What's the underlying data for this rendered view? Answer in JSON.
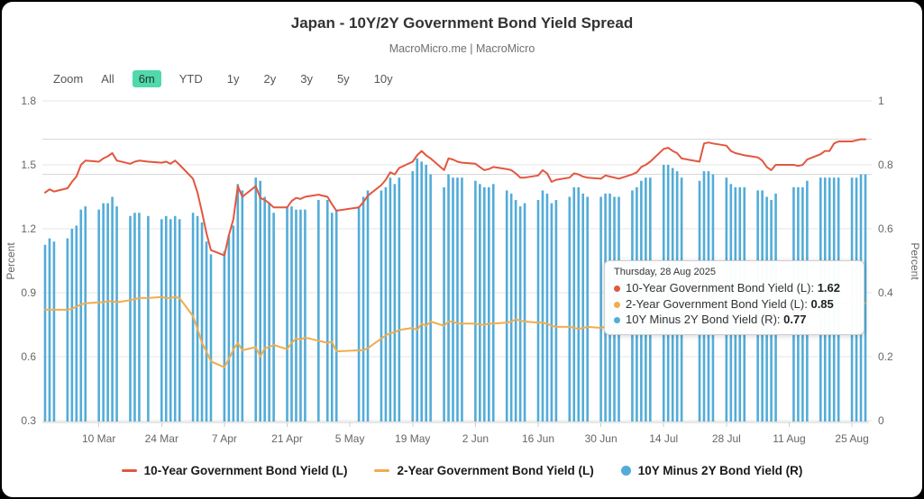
{
  "header": {
    "title": "Japan - 10Y/2Y Government Bond Yield Spread",
    "subtitle": "MacroMicro.me | MacroMicro"
  },
  "zoom_controls": {
    "label": "Zoom",
    "options": [
      "All",
      "6m",
      "YTD",
      "1y",
      "2y",
      "3y",
      "5y",
      "10y"
    ],
    "active": "6m",
    "active_bg": "#50d9ab"
  },
  "tooltip": {
    "title": "Thursday, 28 Aug 2025",
    "rows": [
      {
        "label": "10-Year Government Bond Yield (L)",
        "value": "1.62",
        "color": "#e2573f"
      },
      {
        "label": "2-Year Government Bond Yield (L)",
        "value": "0.85",
        "color": "#f0ad4e"
      },
      {
        "label": "10Y Minus 2Y Bond Yield (R)",
        "value": "0.77",
        "color": "#53acd8"
      }
    ]
  },
  "legend": [
    {
      "name": "10-Year Government Bond Yield (L)",
      "color": "#e2573f",
      "marker": "line"
    },
    {
      "name": "2-Year Government Bond Yield (L)",
      "color": "#f0ad4e",
      "marker": "line"
    },
    {
      "name": "10Y Minus 2Y Bond Yield (R)",
      "color": "#53acd8",
      "marker": "circle"
    }
  ],
  "chart_data": {
    "type": "mixed",
    "title": "Japan - 10Y/2Y Government Bond Yield Spread",
    "grid": true,
    "axes": {
      "left": {
        "title": "Percent",
        "min": 0.3,
        "max": 1.8,
        "tick_labels": [
          "1.8",
          "1.5",
          "1.2",
          "0.9",
          "0.6",
          "0.3"
        ],
        "tick_values": [
          1.8,
          1.5,
          1.2,
          0.9,
          0.6,
          0.3
        ]
      },
      "right": {
        "title": "Percent",
        "min": 0,
        "max": 1,
        "tick_labels": [
          "1",
          "0.8",
          "0.6",
          "0.4",
          "0.2",
          "0"
        ],
        "tick_values": [
          1,
          0.8,
          0.6,
          0.4,
          0.2,
          0
        ]
      },
      "x": {
        "start_date": "2025-02-26",
        "end_date": "2025-08-28",
        "ticks": [
          {
            "label": "10 Mar",
            "date": "2025-03-10"
          },
          {
            "label": "24 Mar",
            "date": "2025-03-24"
          },
          {
            "label": "7 Apr",
            "date": "2025-04-07"
          },
          {
            "label": "21 Apr",
            "date": "2025-04-21"
          },
          {
            "label": "5 May",
            "date": "2025-05-05"
          },
          {
            "label": "19 May",
            "date": "2025-05-19"
          },
          {
            "label": "2 Jun",
            "date": "2025-06-02"
          },
          {
            "label": "16 Jun",
            "date": "2025-06-16"
          },
          {
            "label": "30 Jun",
            "date": "2025-06-30"
          },
          {
            "label": "14 Jul",
            "date": "2025-07-14"
          },
          {
            "label": "28 Jul",
            "date": "2025-07-28"
          },
          {
            "label": "11 Aug",
            "date": "2025-08-11"
          },
          {
            "label": "25 Aug",
            "date": "2025-08-25"
          }
        ]
      }
    },
    "reference_lines": [
      {
        "axis": "left",
        "value": 1.62
      },
      {
        "axis": "right",
        "value": 0.77
      }
    ],
    "dates": [
      "2025-02-26",
      "2025-02-27",
      "2025-02-28",
      "2025-03-03",
      "2025-03-04",
      "2025-03-05",
      "2025-03-06",
      "2025-03-07",
      "2025-03-10",
      "2025-03-11",
      "2025-03-12",
      "2025-03-13",
      "2025-03-14",
      "2025-03-17",
      "2025-03-18",
      "2025-03-19",
      "2025-03-21",
      "2025-03-24",
      "2025-03-25",
      "2025-03-26",
      "2025-03-27",
      "2025-03-28",
      "2025-03-31",
      "2025-04-01",
      "2025-04-02",
      "2025-04-03",
      "2025-04-04",
      "2025-04-07",
      "2025-04-08",
      "2025-04-09",
      "2025-04-10",
      "2025-04-11",
      "2025-04-14",
      "2025-04-15",
      "2025-04-16",
      "2025-04-17",
      "2025-04-18",
      "2025-04-21",
      "2025-04-22",
      "2025-04-23",
      "2025-04-24",
      "2025-04-25",
      "2025-04-28",
      "2025-04-30",
      "2025-05-01",
      "2025-05-02",
      "2025-05-07",
      "2025-05-08",
      "2025-05-09",
      "2025-05-12",
      "2025-05-13",
      "2025-05-14",
      "2025-05-15",
      "2025-05-16",
      "2025-05-19",
      "2025-05-20",
      "2025-05-21",
      "2025-05-22",
      "2025-05-23",
      "2025-05-26",
      "2025-05-27",
      "2025-05-28",
      "2025-05-29",
      "2025-05-30",
      "2025-06-02",
      "2025-06-03",
      "2025-06-04",
      "2025-06-05",
      "2025-06-06",
      "2025-06-09",
      "2025-06-10",
      "2025-06-11",
      "2025-06-12",
      "2025-06-13",
      "2025-06-16",
      "2025-06-17",
      "2025-06-18",
      "2025-06-19",
      "2025-06-20",
      "2025-06-23",
      "2025-06-24",
      "2025-06-25",
      "2025-06-26",
      "2025-06-27",
      "2025-06-30",
      "2025-07-01",
      "2025-07-02",
      "2025-07-03",
      "2025-07-04",
      "2025-07-07",
      "2025-07-08",
      "2025-07-09",
      "2025-07-10",
      "2025-07-11",
      "2025-07-14",
      "2025-07-15",
      "2025-07-16",
      "2025-07-17",
      "2025-07-18",
      "2025-07-22",
      "2025-07-23",
      "2025-07-24",
      "2025-07-25",
      "2025-07-28",
      "2025-07-29",
      "2025-07-30",
      "2025-07-31",
      "2025-08-01",
      "2025-08-04",
      "2025-08-05",
      "2025-08-06",
      "2025-08-07",
      "2025-08-08",
      "2025-08-12",
      "2025-08-13",
      "2025-08-14",
      "2025-08-15",
      "2025-08-18",
      "2025-08-19",
      "2025-08-20",
      "2025-08-21",
      "2025-08-22",
      "2025-08-25",
      "2025-08-26",
      "2025-08-27",
      "2025-08-28"
    ],
    "series": [
      {
        "name": "10-Year Government Bond Yield (L)",
        "type": "line",
        "axis": "left",
        "color": "#e2573f",
        "values": [
          1.37,
          1.385,
          1.375,
          1.39,
          1.42,
          1.445,
          1.5,
          1.52,
          1.515,
          1.53,
          1.54,
          1.555,
          1.52,
          1.505,
          1.515,
          1.52,
          1.515,
          1.51,
          1.515,
          1.505,
          1.52,
          1.5,
          1.435,
          1.37,
          1.28,
          1.18,
          1.1,
          1.075,
          1.17,
          1.245,
          1.4,
          1.35,
          1.4,
          1.345,
          1.335,
          1.32,
          1.3,
          1.3,
          1.33,
          1.345,
          1.34,
          1.35,
          1.36,
          1.35,
          1.315,
          1.285,
          1.3,
          1.325,
          1.355,
          1.405,
          1.43,
          1.465,
          1.455,
          1.485,
          1.515,
          1.545,
          1.565,
          1.545,
          1.53,
          1.475,
          1.53,
          1.525,
          1.515,
          1.51,
          1.505,
          1.49,
          1.475,
          1.48,
          1.49,
          1.48,
          1.475,
          1.46,
          1.44,
          1.44,
          1.45,
          1.475,
          1.46,
          1.42,
          1.43,
          1.44,
          1.46,
          1.455,
          1.445,
          1.44,
          1.435,
          1.45,
          1.445,
          1.44,
          1.435,
          1.455,
          1.465,
          1.49,
          1.5,
          1.515,
          1.575,
          1.58,
          1.565,
          1.555,
          1.53,
          1.515,
          1.6,
          1.605,
          1.6,
          1.59,
          1.565,
          1.555,
          1.55,
          1.545,
          1.535,
          1.52,
          1.49,
          1.475,
          1.5,
          1.5,
          1.495,
          1.5,
          1.525,
          1.55,
          1.565,
          1.565,
          1.6,
          1.61,
          1.61,
          1.615,
          1.62,
          1.62
        ]
      },
      {
        "name": "2-Year Government Bond Yield (L)",
        "type": "line",
        "axis": "left",
        "color": "#f0ad4e",
        "values": [
          0.82,
          0.82,
          0.82,
          0.82,
          0.825,
          0.835,
          0.845,
          0.85,
          0.855,
          0.855,
          0.86,
          0.86,
          0.855,
          0.865,
          0.87,
          0.875,
          0.875,
          0.88,
          0.875,
          0.875,
          0.88,
          0.875,
          0.79,
          0.73,
          0.665,
          0.625,
          0.578,
          0.55,
          0.59,
          0.633,
          0.665,
          0.63,
          0.645,
          0.6,
          0.64,
          0.645,
          0.655,
          0.635,
          0.665,
          0.685,
          0.68,
          0.69,
          0.675,
          0.665,
          0.67,
          0.625,
          0.63,
          0.63,
          0.64,
          0.685,
          0.7,
          0.71,
          0.715,
          0.725,
          0.735,
          0.725,
          0.755,
          0.745,
          0.765,
          0.745,
          0.765,
          0.765,
          0.755,
          0.755,
          0.755,
          0.75,
          0.75,
          0.755,
          0.755,
          0.76,
          0.765,
          0.775,
          0.77,
          0.765,
          0.76,
          0.76,
          0.755,
          0.745,
          0.74,
          0.74,
          0.735,
          0.73,
          0.735,
          0.74,
          0.735,
          0.74,
          0.735,
          0.74,
          0.735,
          0.735,
          0.735,
          0.74,
          0.745,
          0.755,
          0.775,
          0.78,
          0.775,
          0.78,
          0.77,
          0.765,
          0.825,
          0.83,
          0.835,
          0.835,
          0.83,
          0.825,
          0.825,
          0.82,
          0.815,
          0.805,
          0.795,
          0.785,
          0.79,
          0.775,
          0.77,
          0.775,
          0.78,
          0.795,
          0.81,
          0.81,
          0.845,
          0.85,
          0.85,
          0.855,
          0.855,
          0.85
        ]
      },
      {
        "name": "10Y Minus 2Y Bond Yield (R)",
        "type": "bar",
        "axis": "right",
        "color": "#53acd8",
        "values": [
          0.55,
          0.57,
          0.56,
          0.57,
          0.6,
          0.61,
          0.66,
          0.67,
          0.66,
          0.68,
          0.68,
          0.7,
          0.67,
          0.64,
          0.65,
          0.65,
          0.64,
          0.63,
          0.64,
          0.63,
          0.64,
          0.63,
          0.65,
          0.64,
          0.62,
          0.56,
          0.52,
          0.53,
          0.58,
          0.61,
          0.74,
          0.72,
          0.76,
          0.75,
          0.7,
          0.68,
          0.65,
          0.67,
          0.67,
          0.66,
          0.66,
          0.66,
          0.69,
          0.69,
          0.65,
          0.66,
          0.67,
          0.7,
          0.72,
          0.72,
          0.73,
          0.76,
          0.74,
          0.76,
          0.78,
          0.82,
          0.81,
          0.8,
          0.77,
          0.73,
          0.77,
          0.76,
          0.76,
          0.76,
          0.75,
          0.74,
          0.73,
          0.73,
          0.74,
          0.72,
          0.71,
          0.69,
          0.67,
          0.68,
          0.69,
          0.72,
          0.71,
          0.68,
          0.69,
          0.7,
          0.73,
          0.73,
          0.71,
          0.7,
          0.7,
          0.71,
          0.71,
          0.7,
          0.7,
          0.72,
          0.73,
          0.75,
          0.76,
          0.76,
          0.8,
          0.8,
          0.79,
          0.78,
          0.76,
          0.75,
          0.78,
          0.78,
          0.77,
          0.76,
          0.74,
          0.73,
          0.73,
          0.73,
          0.72,
          0.72,
          0.7,
          0.69,
          0.71,
          0.73,
          0.73,
          0.73,
          0.75,
          0.76,
          0.76,
          0.76,
          0.76,
          0.76,
          0.76,
          0.76,
          0.77,
          0.77
        ]
      }
    ]
  },
  "colors": {
    "grid": "#e6e6e6",
    "reference_line": "#d8d8d8",
    "axis_line": "#cccccc",
    "axis_text": "#666666"
  }
}
